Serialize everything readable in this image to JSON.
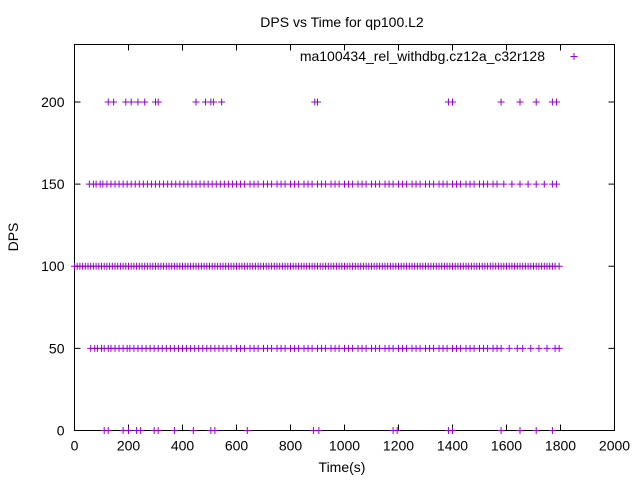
{
  "chart_data": {
    "type": "scatter",
    "title": "DPS vs Time for qp100.L2",
    "xlabel": "Time(s)",
    "ylabel": "DPS",
    "xlim": [
      0,
      2000
    ],
    "ylim": [
      0,
      235
    ],
    "xticks": [
      0,
      200,
      400,
      600,
      800,
      1000,
      1200,
      1400,
      1600,
      1800,
      2000
    ],
    "yticks": [
      0,
      50,
      100,
      150,
      200
    ],
    "grid": false,
    "legend": "top-right",
    "marker": "+",
    "series": [
      {
        "name": "ma100434_rel_withdbg.cz12a_c32r128",
        "color": "#9400d3",
        "bands": [
          {
            "y": 0,
            "x": [
              110,
              125,
              180,
              200,
              230,
              245,
              295,
              310,
              370,
              440,
              505,
              520,
              640,
              885,
              905,
              1180,
              1195,
              1385,
              1400,
              1580,
              1650,
              1710,
              1770
            ]
          },
          {
            "y": 50,
            "x": [
              60,
              75,
              85,
              100,
              110,
              125,
              135,
              150,
              165,
              180,
              195,
              205,
              220,
              235,
              250,
              265,
              280,
              295,
              310,
              325,
              340,
              355,
              370,
              385,
              400,
              415,
              430,
              445,
              460,
              475,
              490,
              505,
              520,
              535,
              550,
              565,
              580,
              600,
              615,
              630,
              650,
              665,
              680,
              700,
              715,
              730,
              750,
              765,
              780,
              800,
              815,
              830,
              850,
              865,
              880,
              900,
              915,
              930,
              950,
              965,
              980,
              1000,
              1015,
              1030,
              1050,
              1065,
              1080,
              1100,
              1115,
              1130,
              1150,
              1165,
              1180,
              1200,
              1215,
              1230,
              1250,
              1265,
              1280,
              1300,
              1315,
              1330,
              1350,
              1365,
              1380,
              1400,
              1415,
              1430,
              1450,
              1465,
              1480,
              1500,
              1515,
              1530,
              1550,
              1565,
              1580,
              1610,
              1640,
              1660,
              1690,
              1720,
              1750,
              1780,
              1795
            ]
          },
          {
            "y": 100,
            "x": [
              0,
              10,
              20,
              30,
              40,
              50,
              60,
              70,
              80,
              90,
              100,
              110,
              120,
              130,
              140,
              150,
              160,
              170,
              180,
              190,
              200,
              210,
              220,
              230,
              240,
              250,
              260,
              270,
              280,
              290,
              300,
              310,
              320,
              330,
              340,
              350,
              360,
              370,
              380,
              390,
              400,
              410,
              420,
              430,
              440,
              450,
              460,
              470,
              480,
              490,
              500,
              510,
              520,
              530,
              540,
              550,
              560,
              570,
              580,
              590,
              600,
              610,
              620,
              630,
              640,
              650,
              660,
              670,
              680,
              690,
              700,
              710,
              720,
              730,
              740,
              750,
              760,
              770,
              780,
              790,
              800,
              810,
              820,
              830,
              840,
              850,
              860,
              870,
              880,
              890,
              900,
              910,
              920,
              930,
              940,
              950,
              960,
              970,
              980,
              990,
              1000,
              1010,
              1020,
              1030,
              1040,
              1050,
              1060,
              1070,
              1080,
              1090,
              1100,
              1110,
              1120,
              1130,
              1140,
              1150,
              1160,
              1170,
              1180,
              1190,
              1200,
              1210,
              1220,
              1230,
              1240,
              1250,
              1260,
              1270,
              1280,
              1290,
              1300,
              1310,
              1320,
              1330,
              1340,
              1350,
              1360,
              1370,
              1380,
              1390,
              1400,
              1410,
              1420,
              1430,
              1440,
              1450,
              1460,
              1470,
              1480,
              1490,
              1500,
              1510,
              1520,
              1530,
              1540,
              1550,
              1560,
              1570,
              1580,
              1590,
              1600,
              1610,
              1620,
              1630,
              1640,
              1650,
              1660,
              1670,
              1680,
              1690,
              1700,
              1710,
              1720,
              1730,
              1740,
              1750,
              1760,
              1770,
              1780,
              1795
            ]
          },
          {
            "y": 150,
            "x": [
              55,
              70,
              80,
              95,
              105,
              120,
              135,
              150,
              165,
              180,
              195,
              210,
              225,
              240,
              255,
              270,
              285,
              300,
              315,
              330,
              345,
              360,
              375,
              390,
              405,
              420,
              435,
              450,
              465,
              480,
              495,
              510,
              525,
              540,
              555,
              570,
              585,
              600,
              615,
              630,
              650,
              665,
              680,
              700,
              715,
              730,
              750,
              765,
              780,
              800,
              815,
              830,
              850,
              865,
              880,
              900,
              915,
              930,
              950,
              965,
              980,
              1000,
              1015,
              1030,
              1050,
              1065,
              1080,
              1100,
              1115,
              1130,
              1150,
              1165,
              1180,
              1200,
              1215,
              1230,
              1250,
              1265,
              1280,
              1300,
              1315,
              1330,
              1350,
              1365,
              1380,
              1400,
              1415,
              1430,
              1450,
              1465,
              1480,
              1500,
              1515,
              1530,
              1550,
              1565,
              1590,
              1620,
              1650,
              1680,
              1710,
              1740,
              1770,
              1785
            ]
          },
          {
            "y": 200,
            "x": [
              125,
              145,
              190,
              210,
              235,
              260,
              300,
              310,
              450,
              485,
              505,
              515,
              545,
              890,
              900,
              1385,
              1400,
              1580,
              1650,
              1710,
              1770,
              1785
            ]
          }
        ]
      }
    ]
  }
}
